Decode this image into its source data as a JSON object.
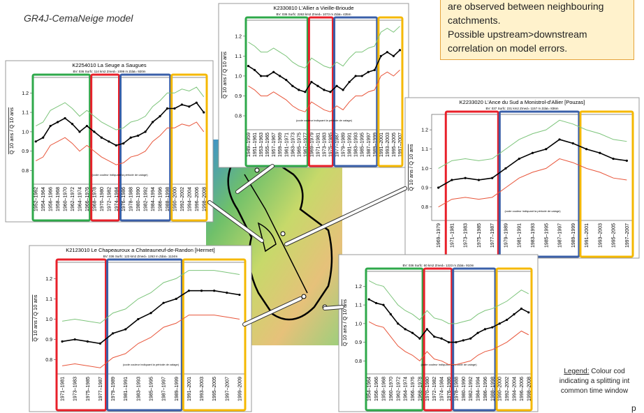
{
  "header": {
    "model": "GR4J-CemaNeige model"
  },
  "callout": {
    "lines": [
      "are  observed between neighbouring",
      "catchments.",
      "Possible upstream>downstream",
      "correlation on model errors."
    ]
  },
  "legend": {
    "label": "Legend:",
    "lines": [
      "Colour cod",
      "indicating a splitting int",
      "common time window"
    ]
  },
  "page_marker": "p",
  "chart_data": [
    {
      "type": "line",
      "title": "K2254010    La Seuge a Saugues",
      "subtitle": "BV: 036   Surfc: 114 km2   Zmed= 1099 m   Zdat= 920m",
      "y_label": "Q 10 ans  /  Q 10 ans",
      "annotation": "(code couleur indiquant la période de calage)",
      "ylim": [
        0.73,
        1.28
      ],
      "yticks": [
        0.8,
        0.9,
        {
          "value": 1,
          "label": "1.0"
        },
        1.1,
        1.2
      ],
      "groups": [
        {
          "color": "#2ea84a",
          "categories": [
            "1952–1962",
            "1954–1964",
            "1956–1966",
            "1958–1968",
            "1960–1970",
            "1962–1972",
            "1964–1974",
            "1966–1976"
          ]
        },
        {
          "color": "#e8202a",
          "categories": [
            "1968–1978",
            "1970–1980",
            "1972–1982",
            "1974–1984"
          ]
        },
        {
          "color": "#3a5fa8",
          "categories": [
            "1976–1986",
            "1978–1988",
            "1980–1990",
            "1982–1992",
            "1984–1994",
            "1986–1996",
            "1988–1998"
          ]
        },
        {
          "color": "#f5b800",
          "categories": [
            "1990–2000",
            "1992–2002",
            "1994–2004",
            "1996–2006",
            "1998–2008"
          ]
        }
      ],
      "series": [
        {
          "color": "#7cc47a",
          "values": [
            1.03,
            1.05,
            1.11,
            1.13,
            1.15,
            1.12,
            1.08,
            1.11,
            1.08,
            1.05,
            1.03,
            1.01,
            1.02,
            1.05,
            1.06,
            1.08,
            1.13,
            1.16,
            1.2,
            1.2,
            1.22,
            1.21,
            1.23,
            1.18
          ]
        },
        {
          "color": "#000000",
          "values": [
            0.95,
            0.97,
            1.03,
            1.05,
            1.07,
            1.04,
            1.0,
            1.03,
            1.0,
            0.97,
            0.95,
            0.93,
            0.94,
            0.97,
            0.98,
            1.0,
            1.05,
            1.08,
            1.12,
            1.12,
            1.14,
            1.13,
            1.15,
            1.1
          ]
        },
        {
          "color": "#e8553a",
          "values": [
            0.85,
            0.87,
            0.93,
            0.95,
            0.97,
            0.94,
            0.9,
            0.93,
            0.9,
            0.87,
            0.85,
            0.83,
            0.84,
            0.87,
            0.88,
            0.9,
            0.95,
            0.98,
            1.02,
            1.02,
            1.04,
            1.03,
            1.05,
            1.0
          ]
        }
      ]
    },
    {
      "type": "line",
      "title": "K2330810    L'Allier a Vieille-Brioude",
      "subtitle": "BV: 036   Surfc: 2263 km2   Zmed= 1073 m   Zdat= 435m",
      "y_label": "Q 10 ans  /  Q 10 ans",
      "annotation": "(code couleur indiquant la période de calage)",
      "ylim": [
        0.73,
        1.28
      ],
      "yticks": [
        0.8,
        0.9,
        {
          "value": 1,
          "label": "1.0"
        },
        1.1,
        1.2
      ],
      "groups": [
        {
          "color": "#2ea84a",
          "categories": [
            "1949–1959",
            "1951–1961",
            "1953–1963",
            "1955–1965",
            "1957–1967",
            "1959–1969",
            "1961–1971",
            "1963–1973",
            "1965–1975",
            "1967–1977"
          ]
        },
        {
          "color": "#e8202a",
          "categories": [
            "1969–1979",
            "1971–1981",
            "1973–1983",
            "1975–1985"
          ]
        },
        {
          "color": "#3a5fa8",
          "categories": [
            "1977–1987",
            "1979–1989",
            "1981–1991",
            "1983–1993",
            "1985–1995",
            "1987–1997",
            "1989–1999"
          ]
        },
        {
          "color": "#f5b800",
          "categories": [
            "1991–2001",
            "1993–2003",
            "1995–2005",
            "1997–2007"
          ]
        }
      ],
      "series": [
        {
          "color": "#7cc47a",
          "values": [
            1.17,
            1.15,
            1.12,
            1.12,
            1.14,
            1.12,
            1.1,
            1.07,
            1.05,
            1.04,
            1.09,
            1.07,
            1.05,
            1.04,
            1.07,
            1.05,
            1.09,
            1.12,
            1.12,
            1.14,
            1.15,
            1.22,
            1.24,
            1.22,
            1.25
          ]
        },
        {
          "color": "#000000",
          "values": [
            1.05,
            1.03,
            1.0,
            1.0,
            1.02,
            1.0,
            0.98,
            0.95,
            0.93,
            0.92,
            0.97,
            0.95,
            0.93,
            0.92,
            0.95,
            0.93,
            0.97,
            1.0,
            1.0,
            1.02,
            1.03,
            1.1,
            1.12,
            1.1,
            1.13
          ]
        },
        {
          "color": "#e8553a",
          "values": [
            0.95,
            0.93,
            0.9,
            0.9,
            0.92,
            0.9,
            0.88,
            0.85,
            0.83,
            0.82,
            0.87,
            0.85,
            0.83,
            0.82,
            0.85,
            0.83,
            0.87,
            0.9,
            0.9,
            0.92,
            0.93,
            1.0,
            1.02,
            1.0,
            1.03
          ]
        }
      ]
    },
    {
      "type": "line",
      "title": "K2233020     L'Ance du Sud a Monistrol-d'Allier [Pouzas]",
      "subtitle": "BV: 037   Surfc: 231 km2   Zmed= 1157 m   Zdat= 836m",
      "y_label": "Q 10 ans  /  Q 10 ans",
      "annotation": "(code couleur indiquant la période de calage)",
      "ylim": [
        0.73,
        1.28
      ],
      "yticks": [
        0.8,
        0.9,
        {
          "value": 1,
          "label": "1.0"
        },
        1.1,
        1.2
      ],
      "groups": [
        {
          "color": null,
          "categories": [
            "1969–1979"
          ]
        },
        {
          "color": "#e8202a",
          "categories": [
            "1971–1981",
            "1973–1983",
            "1975–1985",
            "1977–1987"
          ]
        },
        {
          "color": "#3a5fa8",
          "categories": [
            "1979–1989",
            "1981–1991",
            "1983–1993",
            "1985–1995",
            "1987–1997",
            "1989–1999"
          ]
        },
        {
          "color": "#f5b800",
          "categories": [
            "1991–2001",
            "1993–2003",
            "1995–2005",
            "1997–2007"
          ]
        }
      ],
      "series": [
        {
          "color": "#7cc47a",
          "values": [
            1.0,
            1.04,
            1.05,
            1.04,
            1.05,
            1.1,
            1.15,
            1.18,
            1.2,
            1.25,
            1.23,
            1.2,
            1.18,
            1.15,
            1.14
          ]
        },
        {
          "color": "#000000",
          "values": [
            0.9,
            0.94,
            0.95,
            0.94,
            0.95,
            1.0,
            1.05,
            1.08,
            1.1,
            1.15,
            1.13,
            1.1,
            1.08,
            1.05,
            1.04
          ]
        },
        {
          "color": "#e8553a",
          "values": [
            0.8,
            0.84,
            0.85,
            0.84,
            0.85,
            0.9,
            0.95,
            0.98,
            1.0,
            1.05,
            1.03,
            1.0,
            0.98,
            0.95,
            0.94
          ]
        }
      ]
    },
    {
      "type": "line",
      "title": "K2123010    Le Chapeauroux a Chateauneuf-de-Randon [Hermet]",
      "subtitle": "BV: 036   Surfc: 123 km2   Zmed= 1263 m   Zdat= 1124m",
      "y_label": "Q 10 ans  /  Q 10 ans",
      "annotation": "(code couleur indiquant la période de calage)",
      "ylim": [
        0.73,
        1.28
      ],
      "yticks": [
        0.8,
        0.9,
        {
          "value": 1,
          "label": "1.0"
        },
        1.1,
        1.2
      ],
      "groups": [
        {
          "color": "#e8202a",
          "categories": [
            "1971–1981",
            "1973–1983",
            "1975–1985",
            "1977–1987"
          ]
        },
        {
          "color": "#3a5fa8",
          "categories": [
            "1979–1989",
            "1981–1991",
            "1983–1993",
            "1985–1995",
            "1987–1997",
            "1989–1999"
          ]
        },
        {
          "color": "#f5b800",
          "categories": [
            "1991–2001",
            "1993–2003",
            "1995–2005",
            "1997–2007",
            "1999–2009"
          ]
        }
      ],
      "series": [
        {
          "color": "#7cc47a",
          "values": [
            0.99,
            1.0,
            0.99,
            0.98,
            1.03,
            1.05,
            1.1,
            1.13,
            1.18,
            1.2,
            1.24,
            1.24,
            1.24,
            1.23,
            1.22
          ]
        },
        {
          "color": "#000000",
          "values": [
            0.89,
            0.9,
            0.89,
            0.88,
            0.93,
            0.95,
            1.0,
            1.03,
            1.08,
            1.1,
            1.14,
            1.14,
            1.14,
            1.13,
            1.12
          ]
        },
        {
          "color": "#e8553a",
          "values": [
            0.77,
            0.78,
            0.77,
            0.76,
            0.81,
            0.83,
            0.88,
            0.91,
            0.96,
            0.98,
            1.02,
            1.02,
            1.02,
            1.01,
            1.0
          ]
        }
      ]
    },
    {
      "type": "line",
      "subtitle": "BV: 036   Surfc: 60 km2   Zmed= 1223 m   Zdat= 910m",
      "y_label": "Q 10 ans  /  Q 10 ans",
      "annotation": "(code couleur indiquant la période de calage)",
      "ylim": [
        0.73,
        1.28
      ],
      "yticks": [
        0.8,
        0.9,
        {
          "value": 1,
          "label": "1.0"
        },
        1.1,
        1.2
      ],
      "groups": [
        {
          "color": "#2ea84a",
          "categories": [
            "1954–1964",
            "1956–1966",
            "1958–1968",
            "1960–1970",
            "1962–1972",
            "1964–1974",
            "1966–1976",
            "1968–1978"
          ]
        },
        {
          "color": "#e8202a",
          "categories": [
            "1970–1980",
            "1972–1982",
            "1974–1984",
            "1976–1986"
          ]
        },
        {
          "color": "#3a5fa8",
          "categories": [
            "1978–1988",
            "1980–1990",
            "1982–1992",
            "1984–1994",
            "1986–1996",
            "1988–1998"
          ]
        },
        {
          "color": "#f5b800",
          "categories": [
            "1990–2000",
            "1992–2002",
            "1994–2004",
            "1996–2006",
            "1998–2008"
          ]
        }
      ],
      "series": [
        {
          "color": "#7cc47a",
          "values": [
            1.23,
            1.21,
            1.2,
            1.15,
            1.1,
            1.07,
            1.05,
            1.02,
            1.07,
            1.03,
            1.02,
            1.0,
            1.0,
            1.01,
            1.02,
            1.05,
            1.07,
            1.08,
            1.1,
            1.12,
            1.15,
            1.18,
            1.16
          ]
        },
        {
          "color": "#000000",
          "values": [
            1.13,
            1.11,
            1.1,
            1.05,
            1.0,
            0.97,
            0.95,
            0.92,
            0.97,
            0.93,
            0.92,
            0.9,
            0.9,
            0.91,
            0.92,
            0.95,
            0.97,
            0.98,
            1.0,
            1.02,
            1.05,
            1.08,
            1.06
          ]
        },
        {
          "color": "#e8553a",
          "values": [
            1.01,
            0.99,
            0.98,
            0.93,
            0.88,
            0.85,
            0.83,
            0.8,
            0.85,
            0.81,
            0.8,
            0.78,
            0.78,
            0.79,
            0.8,
            0.83,
            0.85,
            0.86,
            0.88,
            0.9,
            0.93,
            0.96,
            0.94
          ]
        }
      ]
    }
  ]
}
